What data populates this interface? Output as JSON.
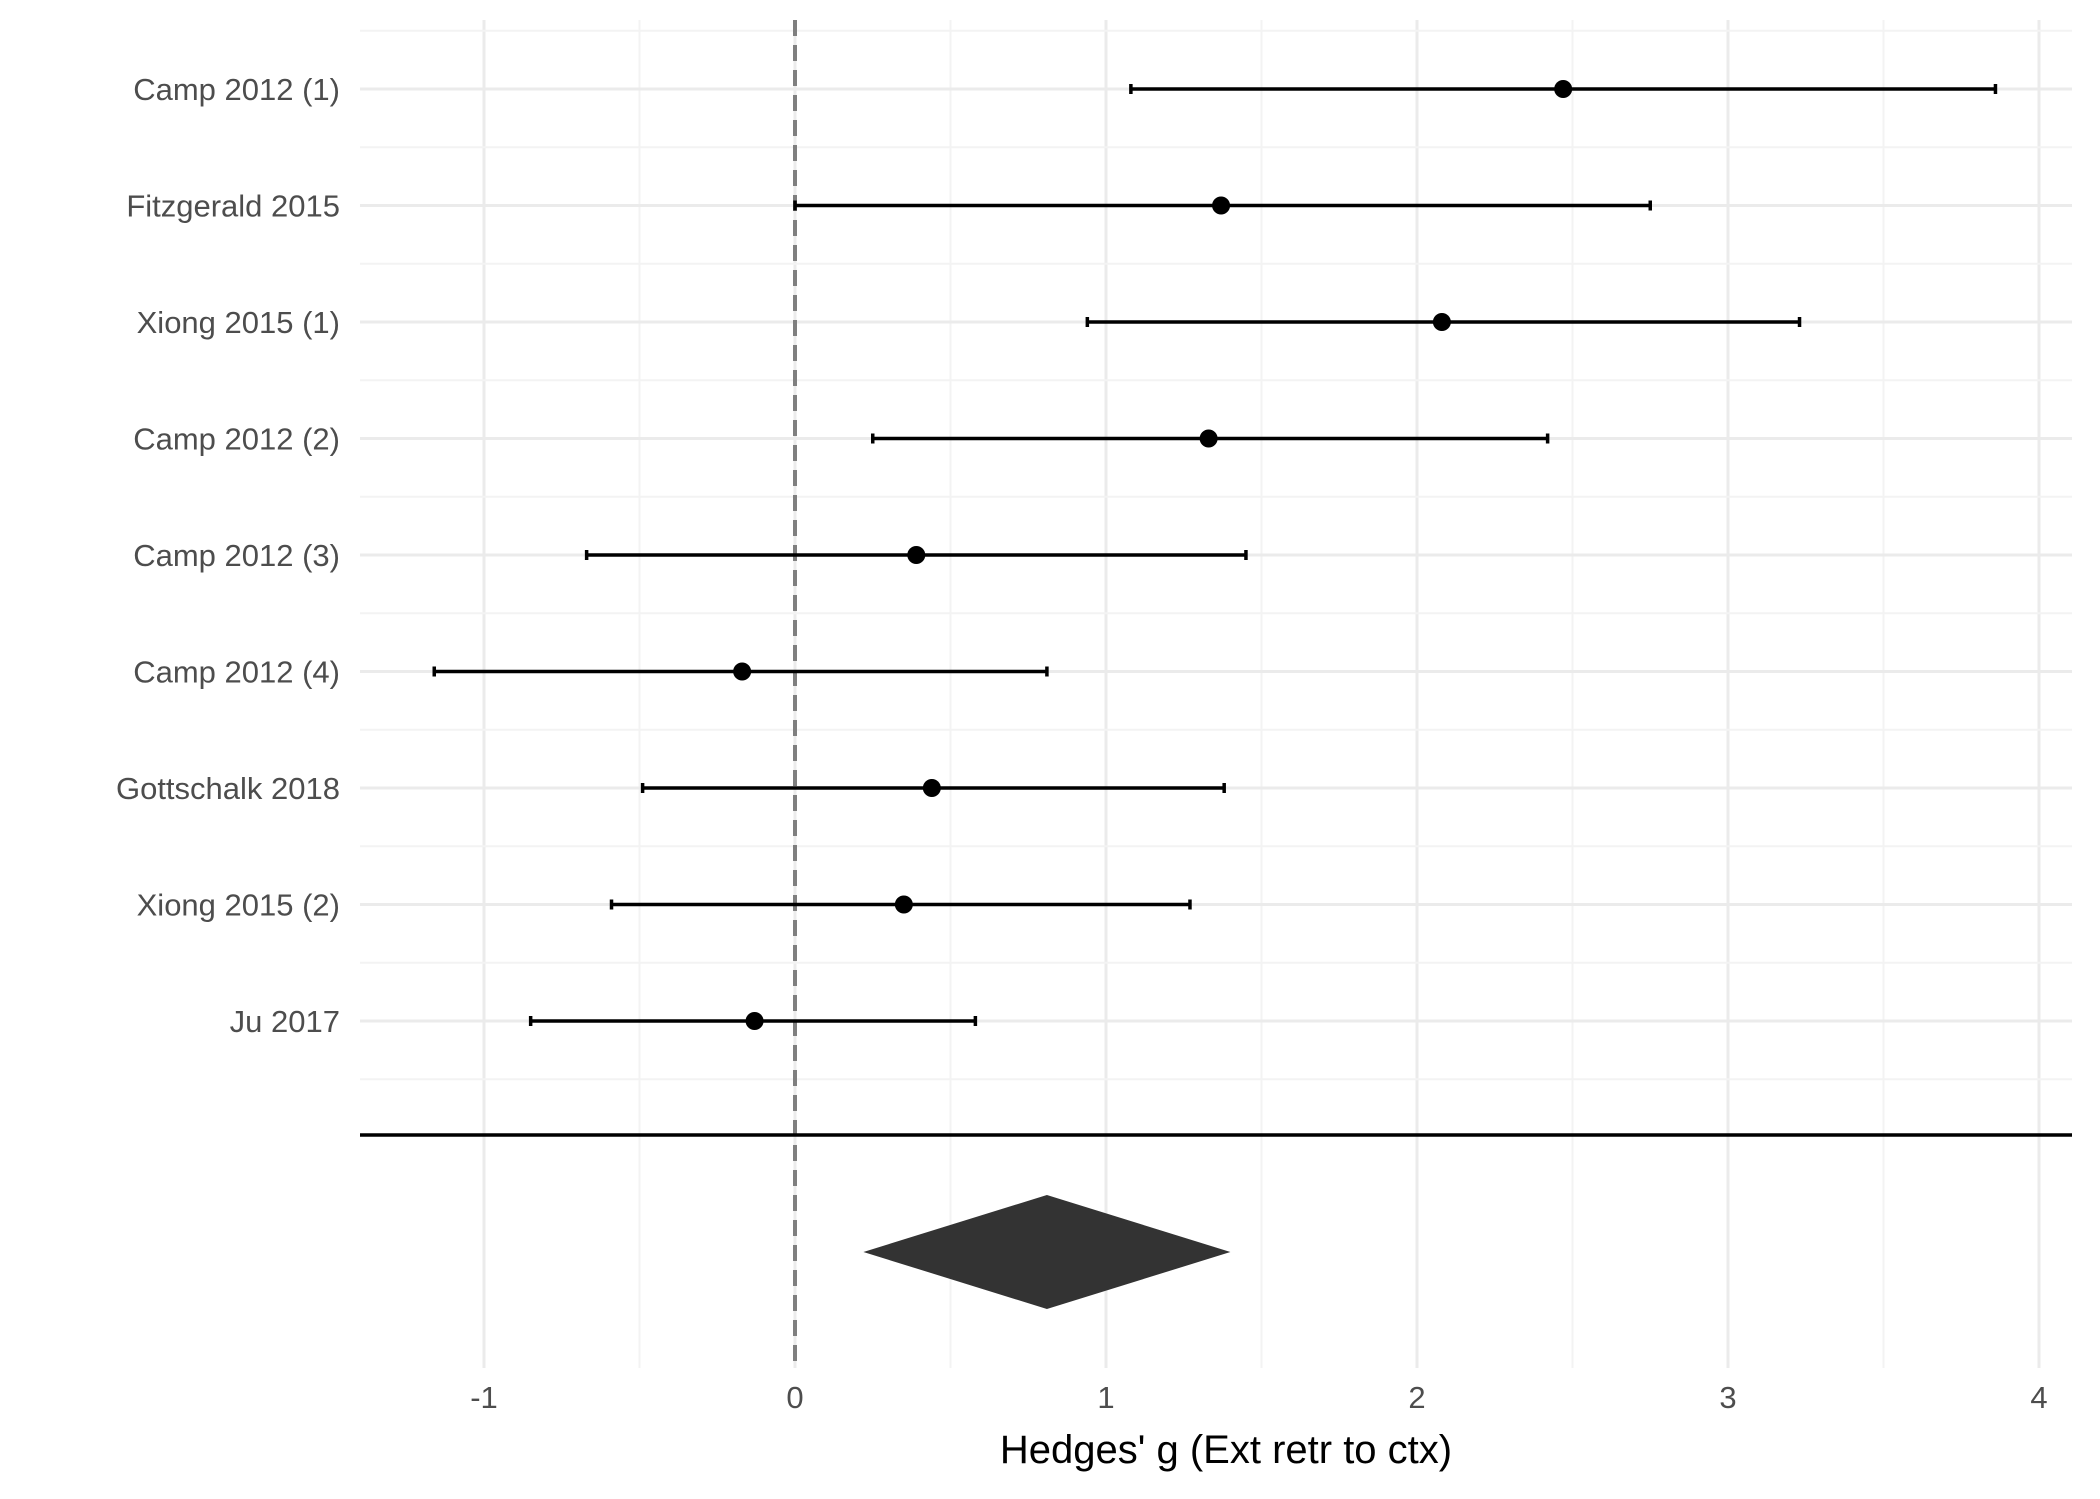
{
  "chart_data": {
    "type": "forest",
    "xlabel": "Hedges' g (Ext retr to ctx)",
    "ylabel": "",
    "xlim": [
      -1.4,
      4.1
    ],
    "xticks": [
      -1,
      0,
      1,
      2,
      3,
      4
    ],
    "grid": true,
    "reference_line": 0,
    "studies": [
      {
        "label": "Camp 2012 (1)",
        "estimate": 2.47,
        "lower": 1.08,
        "upper": 3.86
      },
      {
        "label": "Fitzgerald 2015",
        "estimate": 1.37,
        "lower": 0.0,
        "upper": 2.75
      },
      {
        "label": "Xiong 2015 (1)",
        "estimate": 2.08,
        "lower": 0.94,
        "upper": 3.23
      },
      {
        "label": "Camp 2012 (2)",
        "estimate": 1.33,
        "lower": 0.25,
        "upper": 2.42
      },
      {
        "label": "Camp 2012 (3)",
        "estimate": 0.39,
        "lower": -0.67,
        "upper": 1.45
      },
      {
        "label": "Camp 2012 (4)",
        "estimate": -0.17,
        "lower": -1.16,
        "upper": 0.81
      },
      {
        "label": "Gottschalk 2018",
        "estimate": 0.44,
        "lower": -0.49,
        "upper": 1.38
      },
      {
        "label": "Xiong 2015 (2)",
        "estimate": 0.35,
        "lower": -0.59,
        "upper": 1.27
      },
      {
        "label": "Ju 2017",
        "estimate": -0.13,
        "lower": -0.85,
        "upper": 0.58
      }
    ],
    "summary": {
      "estimate": 0.81,
      "lower": 0.22,
      "upper": 1.4
    },
    "colors": {
      "points": "#000000",
      "summary": "#333333",
      "reference": "#7f7f7f",
      "grid_major": "#ebebeb",
      "grid_minor": "#f3f3f3",
      "tick_label": "#4d4d4d"
    }
  }
}
